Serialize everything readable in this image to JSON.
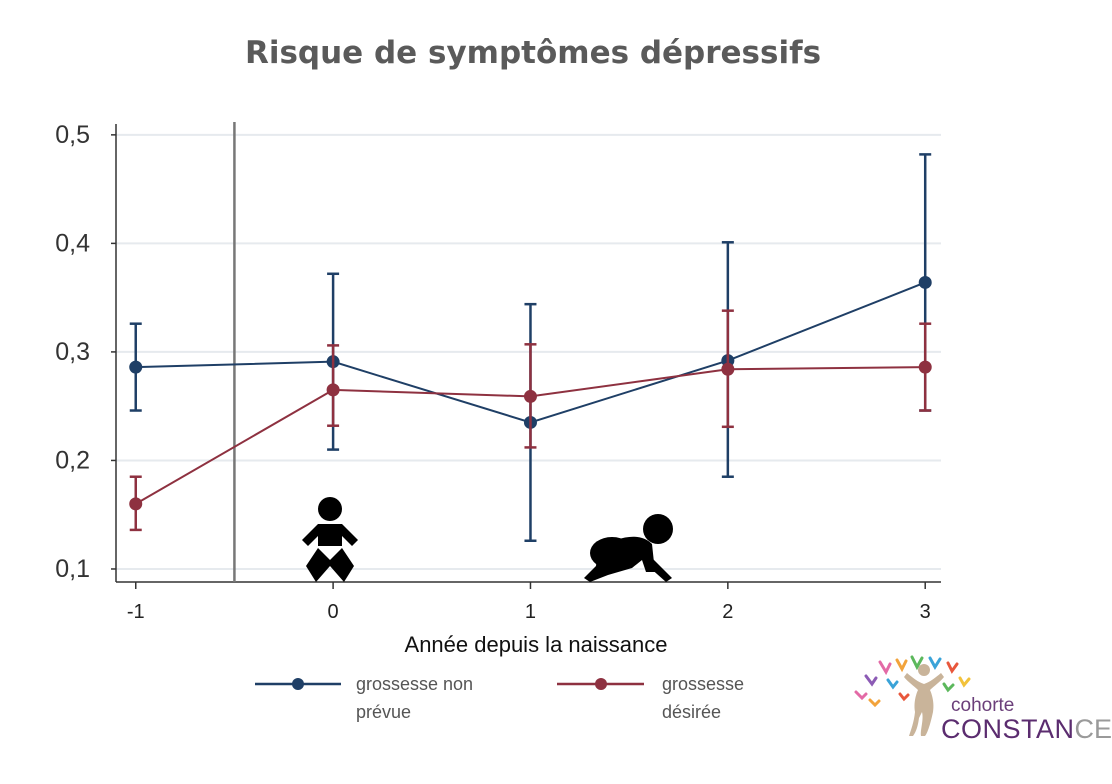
{
  "chart_data": {
    "type": "line",
    "title": "Risque de symptômes dépressifs",
    "xlabel": "Année depuis la naissance",
    "ylabel": "",
    "x": [
      -1,
      0,
      1,
      2,
      3
    ],
    "x_tick_labels": [
      "-1",
      "0",
      "1",
      "2",
      "3"
    ],
    "y_ticks": [
      0.1,
      0.2,
      0.3,
      0.4,
      0.5
    ],
    "y_tick_labels": [
      "0,1",
      "0,2",
      "0,3",
      "0,4",
      "0,5"
    ],
    "xlim": [
      -1.1,
      3.08
    ],
    "ylim": [
      0.088,
      0.51
    ],
    "grid": true,
    "reference_line_x": -0.5,
    "series": [
      {
        "name": "grossesse non prévue",
        "color": "#1f3f66",
        "values": [
          0.286,
          0.291,
          0.235,
          0.292,
          0.364
        ],
        "ci_low": [
          0.246,
          0.21,
          0.126,
          0.185,
          0.246
        ],
        "ci_high": [
          0.326,
          0.372,
          0.344,
          0.401,
          0.482
        ]
      },
      {
        "name": "grossesse désirée",
        "color": "#8e3140",
        "values": [
          0.16,
          0.265,
          0.259,
          0.284,
          0.286
        ],
        "ci_low": [
          0.136,
          0.232,
          0.212,
          0.231,
          0.246
        ],
        "ci_high": [
          0.185,
          0.306,
          0.307,
          0.338,
          0.326
        ]
      }
    ],
    "legend": {
      "placement": "bottom",
      "entries": [
        {
          "line1": "grossesse non",
          "line2": "prévue"
        },
        {
          "line1": "grossesse",
          "line2": "désirée"
        }
      ]
    },
    "annotations": [
      {
        "kind": "icon",
        "name": "baby-icon",
        "x": 0
      },
      {
        "kind": "icon",
        "name": "crawling-baby-icon",
        "x": 1.45
      }
    ]
  },
  "logo": {
    "word1": "cohorte",
    "word2": "CONSTAN",
    "word3": "CES"
  }
}
